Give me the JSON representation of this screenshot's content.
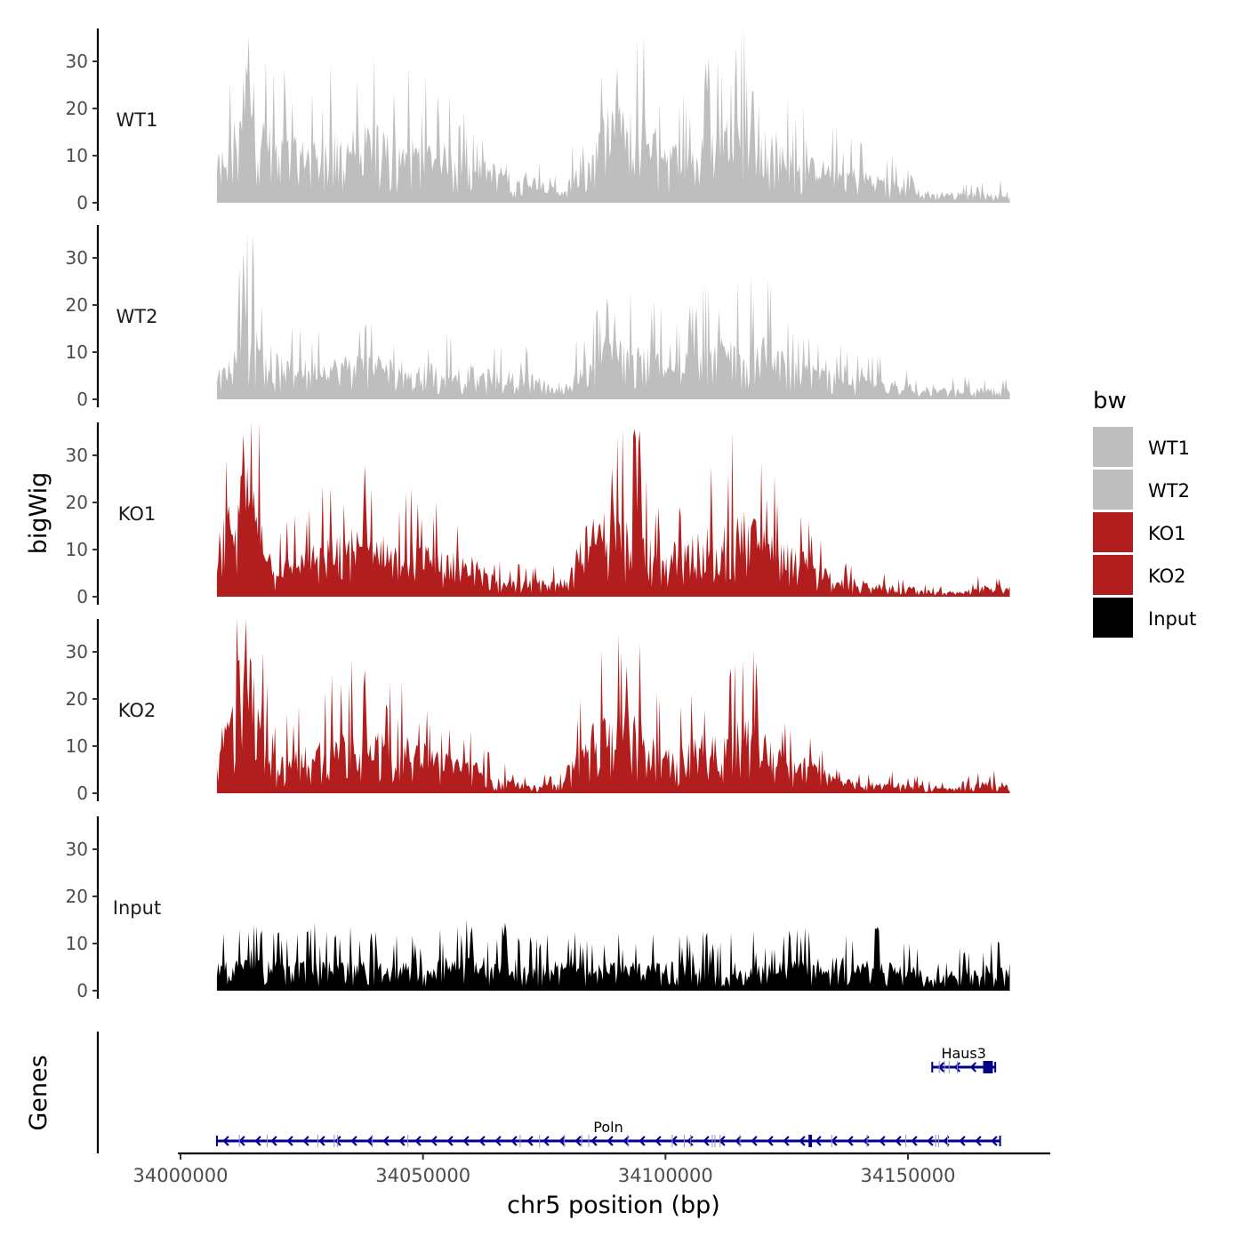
{
  "chart_data": {
    "type": "area",
    "ylabel": "bigWig",
    "xlabel": "chr5 position (bp)",
    "ylim": [
      0,
      37
    ],
    "y_ticks": [
      "0",
      "10",
      "20",
      "30"
    ],
    "x_range": [
      33998000,
      34180000
    ],
    "x_ticks": [
      "34000000",
      "34050000",
      "34100000",
      "34150000"
    ],
    "data_range": [
      34007500,
      34171000
    ],
    "legend": {
      "title": "bw",
      "position": "right",
      "entries": [
        {
          "label": "WT1",
          "color": "#bebebe"
        },
        {
          "label": "WT2",
          "color": "#bebebe"
        },
        {
          "label": "KO1",
          "color": "#b21e1e"
        },
        {
          "label": "KO2",
          "color": "#b21e1e"
        },
        {
          "label": "Input",
          "color": "#000000"
        }
      ]
    },
    "series": [
      {
        "name": "WT1",
        "color": "#bebebe",
        "x": [
          34007500,
          34010000,
          34012000,
          34014000,
          34016000,
          34020000,
          34025000,
          34030000,
          34035000,
          34040000,
          34045000,
          34050000,
          34055000,
          34060000,
          34065000,
          34070000,
          34075000,
          34078000,
          34080000,
          34083000,
          34086000,
          34089000,
          34092000,
          34095000,
          34098000,
          34101000,
          34104000,
          34107000,
          34110000,
          34113000,
          34116000,
          34119000,
          34122000,
          34126000,
          34130000,
          34135000,
          34140000,
          34145000,
          34150000,
          34155000,
          34160000,
          34165000,
          34171000
        ],
        "values": [
          8,
          12,
          18,
          28,
          16,
          12,
          11,
          12,
          13,
          14,
          12,
          11,
          10,
          8,
          7,
          6,
          4,
          2,
          4,
          10,
          13,
          18,
          16,
          17,
          13,
          11,
          10,
          11,
          14,
          15,
          16,
          18,
          13,
          9,
          8,
          7,
          6,
          5,
          3,
          2,
          2,
          2,
          2
        ],
        "peaks": [
          {
            "x": 34014000,
            "y": 35
          },
          {
            "x": 34090000,
            "y": 30
          },
          {
            "x": 34118000,
            "y": 27
          }
        ]
      },
      {
        "name": "WT2",
        "color": "#bebebe",
        "x": [
          34007500,
          34010000,
          34012000,
          34014000,
          34016000,
          34020000,
          34025000,
          34030000,
          34035000,
          34040000,
          34045000,
          34050000,
          34055000,
          34060000,
          34065000,
          34070000,
          34075000,
          34078000,
          34080000,
          34083000,
          34086000,
          34089000,
          34092000,
          34095000,
          34098000,
          34101000,
          34104000,
          34107000,
          34110000,
          34113000,
          34116000,
          34119000,
          34122000,
          34126000,
          34130000,
          34135000,
          34140000,
          34145000,
          34150000,
          34155000,
          34160000,
          34165000,
          34171000
        ],
        "values": [
          5,
          7,
          12,
          16,
          12,
          8,
          7,
          7,
          8,
          8,
          7,
          7,
          6,
          6,
          5,
          5,
          4,
          2,
          3,
          7,
          9,
          11,
          10,
          10,
          9,
          7,
          8,
          10,
          11,
          11,
          12,
          13,
          10,
          7,
          6,
          5,
          4,
          4,
          3,
          2,
          2,
          2,
          2
        ],
        "peaks": [
          {
            "x": 34013000,
            "y": 31
          },
          {
            "x": 34088000,
            "y": 24
          },
          {
            "x": 34105000,
            "y": 21
          }
        ]
      },
      {
        "name": "KO1",
        "color": "#b21e1e",
        "x": [
          34007500,
          34010000,
          34012000,
          34014000,
          34016000,
          34018000,
          34020000,
          34025000,
          34030000,
          34035000,
          34040000,
          34045000,
          34050000,
          34055000,
          34060000,
          34065000,
          34070000,
          34075000,
          34078000,
          34080000,
          34083000,
          34086000,
          34089000,
          34092000,
          34095000,
          34098000,
          34101000,
          34104000,
          34107000,
          34110000,
          34113000,
          34116000,
          34119000,
          34122000,
          34126000,
          34130000,
          34135000,
          34140000,
          34145000,
          34150000,
          34155000,
          34160000,
          34165000,
          34171000
        ],
        "values": [
          11,
          16,
          22,
          24,
          20,
          9,
          6,
          8,
          10,
          12,
          11,
          10,
          9,
          8,
          7,
          4,
          3,
          3,
          3,
          6,
          12,
          14,
          16,
          14,
          15,
          11,
          10,
          10,
          12,
          13,
          14,
          15,
          14,
          11,
          9,
          7,
          4,
          3,
          2,
          2,
          1,
          1,
          2,
          2
        ],
        "peaks": [
          {
            "x": 34013000,
            "y": 35
          },
          {
            "x": 34038000,
            "y": 28
          },
          {
            "x": 34089000,
            "y": 27
          }
        ]
      },
      {
        "name": "KO2",
        "color": "#b21e1e",
        "x": [
          34007500,
          34010000,
          34012000,
          34014000,
          34016000,
          34018000,
          34020000,
          34025000,
          34030000,
          34035000,
          34040000,
          34045000,
          34050000,
          34055000,
          34060000,
          34065000,
          34070000,
          34075000,
          34078000,
          34080000,
          34083000,
          34086000,
          34089000,
          34092000,
          34095000,
          34098000,
          34101000,
          34104000,
          34107000,
          34110000,
          34113000,
          34116000,
          34119000,
          34122000,
          34126000,
          34130000,
          34135000,
          34140000,
          34145000,
          34150000,
          34155000,
          34160000,
          34165000,
          34171000
        ],
        "values": [
          10,
          15,
          22,
          24,
          20,
          9,
          6,
          8,
          10,
          12,
          11,
          10,
          9,
          7,
          6,
          3,
          2,
          2,
          2,
          5,
          11,
          13,
          16,
          14,
          13,
          10,
          9,
          9,
          11,
          11,
          12,
          14,
          12,
          9,
          7,
          6,
          3,
          2,
          2,
          2,
          1,
          1,
          2,
          2
        ],
        "peaks": [
          {
            "x": 34012000,
            "y": 32
          },
          {
            "x": 34038000,
            "y": 26
          },
          {
            "x": 34092000,
            "y": 27
          }
        ]
      },
      {
        "name": "Input",
        "color": "#000000",
        "x": [
          34007500,
          34020000,
          34040000,
          34060000,
          34080000,
          34100000,
          34120000,
          34140000,
          34152000,
          34155000,
          34160000,
          34171000
        ],
        "values": [
          5,
          6,
          5,
          6,
          5,
          5,
          5,
          6,
          4,
          2,
          4,
          5
        ],
        "peaks": [
          {
            "x": 34067000,
            "y": 16
          },
          {
            "x": 34060000,
            "y": 15
          }
        ]
      }
    ],
    "genes_track": {
      "ylabel": "Genes",
      "genes": [
        {
          "name": "Haus3",
          "start": 34155000,
          "end": 34168000,
          "strand": "-",
          "row": 1,
          "exon_blocks": [
            [
              34165500,
              34167500
            ]
          ]
        },
        {
          "name": "Poln",
          "start": 34007500,
          "end": 34169000,
          "strand": "-",
          "row": 2,
          "exon_blocks": [
            [
              34129500,
              34130200
            ]
          ]
        }
      ]
    }
  }
}
